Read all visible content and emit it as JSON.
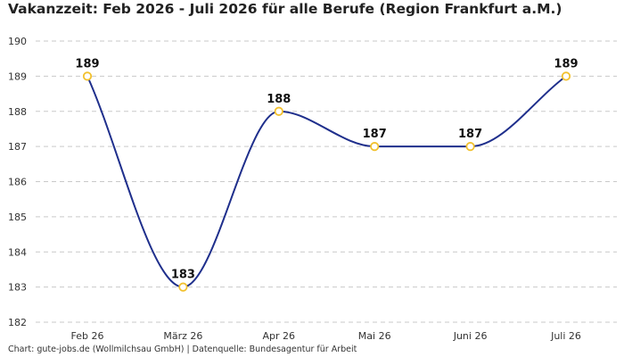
{
  "chart_data": {
    "type": "line",
    "title": "Vakanzzeit: Feb 2026 - Juli 2026 für alle Berufe (Region Frankfurt a.M.)",
    "categories": [
      "Feb 26",
      "März 26",
      "Apr 26",
      "Mai 26",
      "Juni 26",
      "Juli 26"
    ],
    "series": [
      {
        "values": [
          189,
          183,
          188,
          187,
          187,
          189
        ]
      }
    ],
    "data_labels": [
      "189",
      "183",
      "188",
      "187",
      "187",
      "189"
    ],
    "ylim": [
      182,
      190
    ],
    "yticks": [
      "182",
      "183",
      "184",
      "185",
      "186",
      "187",
      "188",
      "189",
      "190"
    ],
    "grid": true,
    "line_style": "smooth",
    "colors": {
      "line": "#1f2f8c",
      "marker": "#f2c12e"
    },
    "footer": "Chart: gute-jobs.de (Wollmilchsau GmbH) | Datenquelle: Bundesagentur für Arbeit"
  }
}
